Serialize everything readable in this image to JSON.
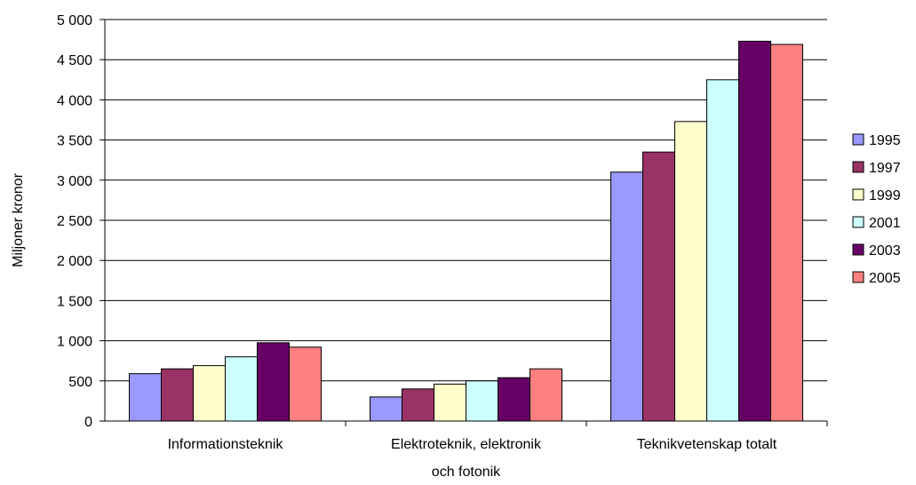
{
  "chart_data": {
    "type": "bar",
    "ylabel": "Miljoner kronor",
    "ylim": [
      0,
      5000
    ],
    "yticks": [
      0,
      500,
      1000,
      1500,
      2000,
      2500,
      3000,
      3500,
      4000,
      4500,
      5000
    ],
    "ytick_labels": [
      "0",
      "500",
      "1 000",
      "1 500",
      "2 000",
      "2 500",
      "3 000",
      "3 500",
      "4 000",
      "4 500",
      "5 000"
    ],
    "grid": true,
    "legend_position": "right",
    "categories": [
      [
        "Informationsteknik"
      ],
      [
        "Elektroteknik, elektronik",
        "och fotonik"
      ],
      [
        "Teknikvetenskap totalt"
      ]
    ],
    "series": [
      {
        "name": "1995",
        "color": "#9999ff",
        "values": [
          590,
          300,
          3100
        ]
      },
      {
        "name": "1997",
        "color": "#993366",
        "values": [
          650,
          400,
          3350
        ]
      },
      {
        "name": "1999",
        "color": "#ffffcc",
        "values": [
          690,
          460,
          3730
        ]
      },
      {
        "name": "2001",
        "color": "#ccffff",
        "values": [
          800,
          500,
          4250
        ]
      },
      {
        "name": "2003",
        "color": "#660066",
        "values": [
          975,
          540,
          4730
        ]
      },
      {
        "name": "2005",
        "color": "#ff8080",
        "values": [
          920,
          650,
          4690
        ]
      }
    ]
  }
}
